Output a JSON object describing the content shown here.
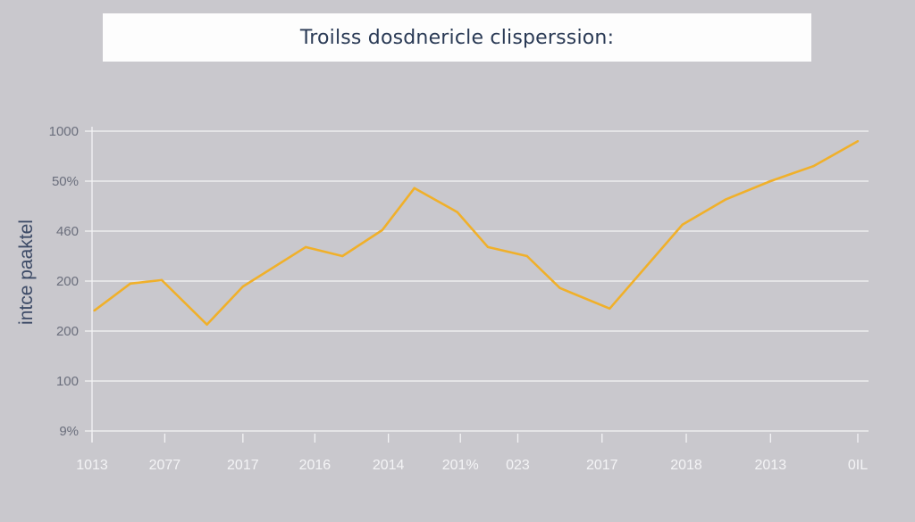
{
  "chart_data": {
    "type": "line",
    "title": "Troilss dosdnericle clisperssion:",
    "xlabel": "",
    "ylabel": "intce paaktel",
    "y_ticks": [
      {
        "pos": 0,
        "label": "9%"
      },
      {
        "pos": 1,
        "label": "100"
      },
      {
        "pos": 2,
        "label": "200"
      },
      {
        "pos": 3,
        "label": "200"
      },
      {
        "pos": 4,
        "label": "460"
      },
      {
        "pos": 5,
        "label": "50%"
      },
      {
        "pos": 6,
        "label": "1000"
      }
    ],
    "x_ticks": [
      {
        "pos": 0,
        "label": "1013"
      },
      {
        "pos": 0.95,
        "label": "2077"
      },
      {
        "pos": 1.97,
        "label": "2017"
      },
      {
        "pos": 2.91,
        "label": "2016"
      },
      {
        "pos": 3.87,
        "label": "2014"
      },
      {
        "pos": 4.81,
        "label": "201%"
      },
      {
        "pos": 5.56,
        "label": "023"
      },
      {
        "pos": 6.66,
        "label": "2017"
      },
      {
        "pos": 7.76,
        "label": "2018"
      },
      {
        "pos": 8.86,
        "label": "2013"
      },
      {
        "pos": 10,
        "label": "0IL"
      }
    ],
    "xlim": [
      0,
      10
    ],
    "ylim": [
      0,
      6
    ],
    "grid": true,
    "series": [
      {
        "name": "series-1",
        "color": "#f0b02a",
        "x": [
          0.03,
          0.5,
          0.91,
          1.5,
          1.97,
          2.79,
          3.27,
          3.79,
          4.21,
          4.77,
          5.17,
          5.68,
          6.11,
          6.76,
          7.71,
          8.27,
          8.86,
          9.42,
          10.0
        ],
        "y": [
          2.41,
          2.95,
          3.02,
          2.13,
          2.89,
          3.68,
          3.5,
          4.02,
          4.86,
          4.38,
          3.68,
          3.5,
          2.86,
          2.45,
          4.13,
          4.63,
          5.0,
          5.3,
          5.8
        ]
      }
    ]
  }
}
